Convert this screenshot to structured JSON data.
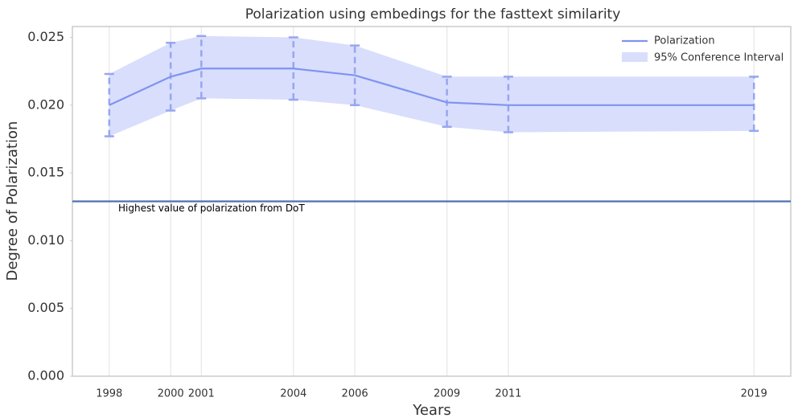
{
  "chart_data": {
    "type": "line",
    "title": "Polarization using embedings for the fasttext similarity",
    "xlabel": "Years",
    "ylabel": "Degree of Polarization",
    "x": [
      1998,
      2000,
      2001,
      2004,
      2006,
      2009,
      2011,
      2019
    ],
    "xlim": [
      1996.8,
      2020.2
    ],
    "xticks": [
      1998,
      2000,
      2001,
      2004,
      2006,
      2009,
      2011,
      2019
    ],
    "ylim": [
      0,
      0.0258
    ],
    "yticks": [
      {
        "value": 0,
        "label": "0.000"
      },
      0.005,
      {
        "value": 0.01,
        "label": "0.010"
      },
      0.015,
      {
        "value": 0.02,
        "label": "0.020"
      },
      0.025
    ],
    "grid": "x",
    "legend": "upper right",
    "series": [
      {
        "name": "Polarization",
        "color": "#7f93f0",
        "values": [
          0.02,
          0.0221,
          0.0227,
          0.0227,
          0.0222,
          0.0202,
          0.02,
          0.02
        ]
      }
    ],
    "band": {
      "name": "95% Conference Interval",
      "color": "#d8defc",
      "error_color": "#97a6ef",
      "lower": [
        0.0177,
        0.0196,
        0.0205,
        0.0204,
        0.02,
        0.0184,
        0.018,
        0.0181
      ],
      "upper": [
        0.0223,
        0.0246,
        0.0251,
        0.025,
        0.0244,
        0.0221,
        0.0221,
        0.0221
      ]
    },
    "hline": {
      "value": 0.0129,
      "color": "#4c72b0",
      "label": "Highest value of polarization from DoT"
    }
  }
}
